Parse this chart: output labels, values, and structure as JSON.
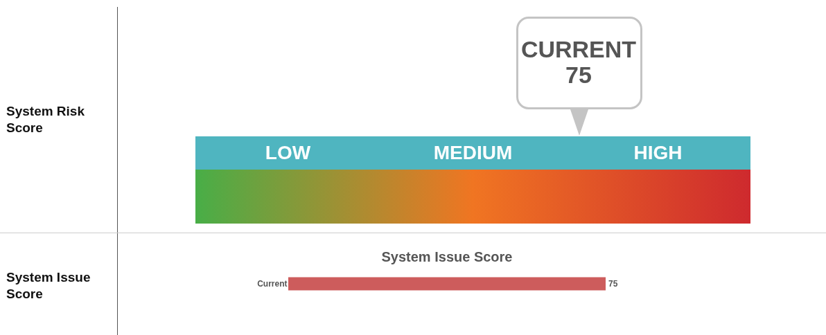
{
  "chart_data": [
    {
      "type": "other",
      "ylabel": "System Risk Score",
      "categories": [
        "LOW",
        "MEDIUM",
        "HIGH"
      ],
      "color": "#4fb5c0",
      "annotations": [
        "CURRENT",
        "75"
      ]
    },
    {
      "type": "bar",
      "orientation": "horizontal",
      "title": "System Issue Score",
      "ylabel": "System Issue Score",
      "categories": [
        "Current"
      ],
      "values": [
        75
      ],
      "color": "#cd5c5c",
      "data_labels": true,
      "grid": false
    }
  ]
}
